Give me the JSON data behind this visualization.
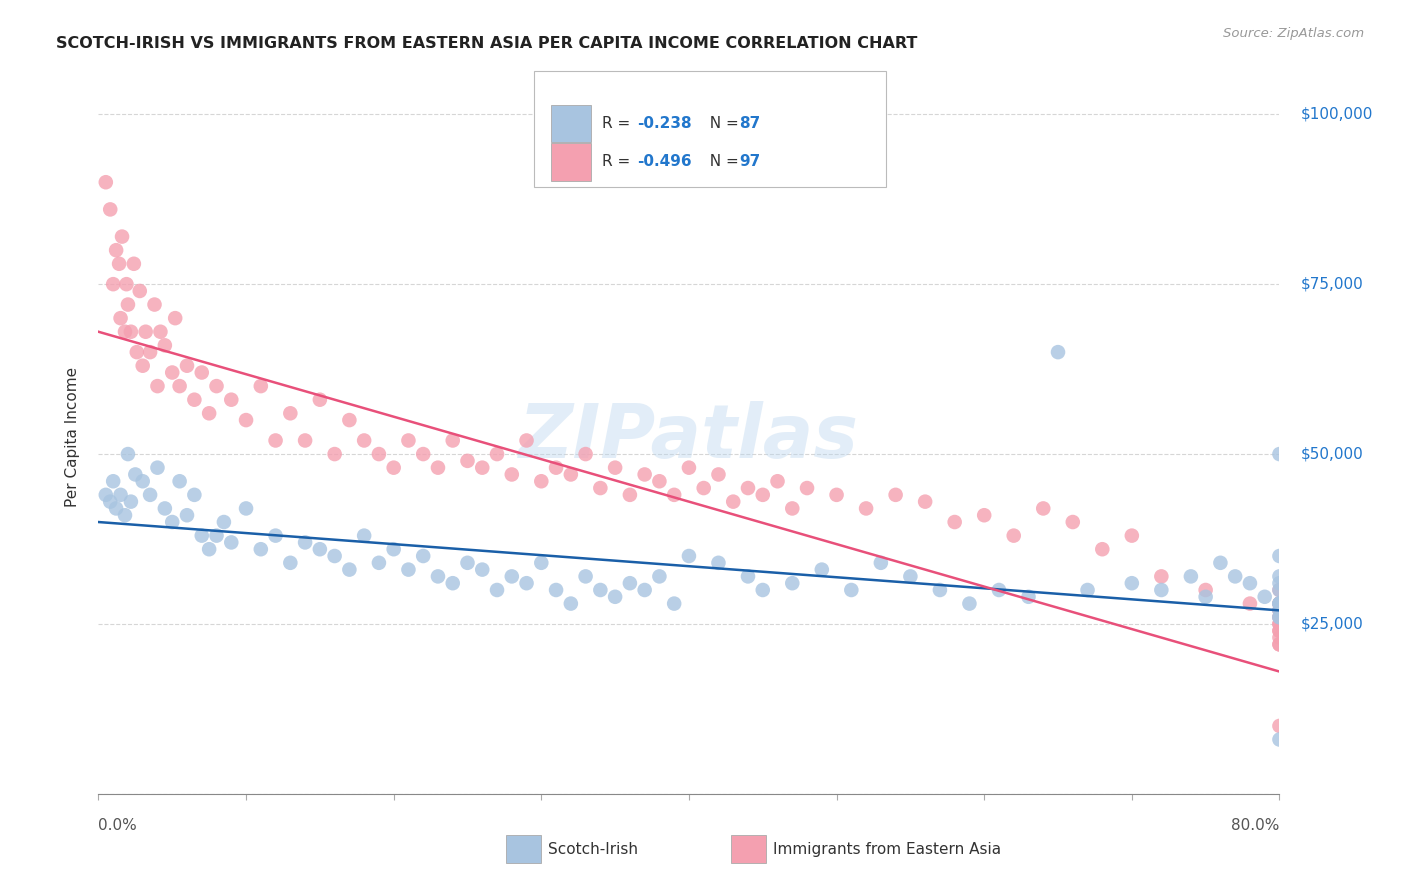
{
  "title": "SCOTCH-IRISH VS IMMIGRANTS FROM EASTERN ASIA PER CAPITA INCOME CORRELATION CHART",
  "source": "Source: ZipAtlas.com",
  "ylabel": "Per Capita Income",
  "y_ticks": [
    0,
    25000,
    50000,
    75000,
    100000
  ],
  "y_tick_labels": [
    "",
    "$25,000",
    "$50,000",
    "$75,000",
    "$100,000"
  ],
  "x_range": [
    0.0,
    80.0
  ],
  "y_range": [
    0,
    105000
  ],
  "blue_R": -0.238,
  "blue_N": 87,
  "pink_R": -0.496,
  "pink_N": 97,
  "blue_color": "#a8c4e0",
  "pink_color": "#f4a0b0",
  "blue_line_color": "#1a5fa8",
  "pink_line_color": "#e8507a",
  "right_label_color": "#2277cc",
  "watermark": "ZIPatlas",
  "blue_line_x0": 0,
  "blue_line_y0": 40000,
  "blue_line_x1": 80,
  "blue_line_y1": 27000,
  "pink_line_x0": 0,
  "pink_line_y0": 68000,
  "pink_line_x1": 80,
  "pink_line_y1": 18000,
  "blue_scatter_x": [
    0.5,
    0.8,
    1.0,
    1.2,
    1.5,
    1.8,
    2.0,
    2.2,
    2.5,
    3.0,
    3.5,
    4.0,
    4.5,
    5.0,
    5.5,
    6.0,
    6.5,
    7.0,
    7.5,
    8.0,
    8.5,
    9.0,
    10.0,
    11.0,
    12.0,
    13.0,
    14.0,
    15.0,
    16.0,
    17.0,
    18.0,
    19.0,
    20.0,
    21.0,
    22.0,
    23.0,
    24.0,
    25.0,
    26.0,
    27.0,
    28.0,
    29.0,
    30.0,
    31.0,
    32.0,
    33.0,
    34.0,
    35.0,
    36.0,
    37.0,
    38.0,
    39.0,
    40.0,
    42.0,
    44.0,
    45.0,
    47.0,
    49.0,
    51.0,
    53.0,
    55.0,
    57.0,
    59.0,
    61.0,
    63.0,
    65.0,
    67.0,
    70.0,
    72.0,
    74.0,
    75.0,
    76.0,
    77.0,
    78.0,
    79.0,
    80.0,
    80.0,
    80.0,
    80.0,
    80.0,
    80.0,
    80.0,
    80.0,
    80.0,
    80.0,
    80.0,
    80.0
  ],
  "blue_scatter_y": [
    44000,
    43000,
    46000,
    42000,
    44000,
    41000,
    50000,
    43000,
    47000,
    46000,
    44000,
    48000,
    42000,
    40000,
    46000,
    41000,
    44000,
    38000,
    36000,
    38000,
    40000,
    37000,
    42000,
    36000,
    38000,
    34000,
    37000,
    36000,
    35000,
    33000,
    38000,
    34000,
    36000,
    33000,
    35000,
    32000,
    31000,
    34000,
    33000,
    30000,
    32000,
    31000,
    34000,
    30000,
    28000,
    32000,
    30000,
    29000,
    31000,
    30000,
    32000,
    28000,
    35000,
    34000,
    32000,
    30000,
    31000,
    33000,
    30000,
    34000,
    32000,
    30000,
    28000,
    30000,
    29000,
    65000,
    30000,
    31000,
    30000,
    32000,
    29000,
    34000,
    32000,
    31000,
    29000,
    30000,
    28000,
    26000,
    28000,
    31000,
    50000,
    35000,
    32000,
    27000,
    8000,
    26000,
    28000
  ],
  "pink_scatter_x": [
    0.5,
    0.8,
    1.0,
    1.2,
    1.4,
    1.5,
    1.6,
    1.8,
    1.9,
    2.0,
    2.2,
    2.4,
    2.6,
    2.8,
    3.0,
    3.2,
    3.5,
    3.8,
    4.0,
    4.2,
    4.5,
    5.0,
    5.2,
    5.5,
    6.0,
    6.5,
    7.0,
    7.5,
    8.0,
    9.0,
    10.0,
    11.0,
    12.0,
    13.0,
    14.0,
    15.0,
    16.0,
    17.0,
    18.0,
    19.0,
    20.0,
    21.0,
    22.0,
    23.0,
    24.0,
    25.0,
    26.0,
    27.0,
    28.0,
    29.0,
    30.0,
    31.0,
    32.0,
    33.0,
    34.0,
    35.0,
    36.0,
    37.0,
    38.0,
    39.0,
    40.0,
    41.0,
    42.0,
    43.0,
    44.0,
    45.0,
    46.0,
    47.0,
    48.0,
    50.0,
    52.0,
    54.0,
    56.0,
    58.0,
    60.0,
    62.0,
    64.0,
    66.0,
    68.0,
    70.0,
    72.0,
    75.0,
    78.0,
    80.0,
    80.0,
    80.0,
    80.0,
    80.0,
    80.0,
    80.0,
    80.0,
    80.0,
    80.0,
    80.0,
    80.0,
    80.0,
    80.0
  ],
  "pink_scatter_y": [
    90000,
    86000,
    75000,
    80000,
    78000,
    70000,
    82000,
    68000,
    75000,
    72000,
    68000,
    78000,
    65000,
    74000,
    63000,
    68000,
    65000,
    72000,
    60000,
    68000,
    66000,
    62000,
    70000,
    60000,
    63000,
    58000,
    62000,
    56000,
    60000,
    58000,
    55000,
    60000,
    52000,
    56000,
    52000,
    58000,
    50000,
    55000,
    52000,
    50000,
    48000,
    52000,
    50000,
    48000,
    52000,
    49000,
    48000,
    50000,
    47000,
    52000,
    46000,
    48000,
    47000,
    50000,
    45000,
    48000,
    44000,
    47000,
    46000,
    44000,
    48000,
    45000,
    47000,
    43000,
    45000,
    44000,
    46000,
    42000,
    45000,
    44000,
    42000,
    44000,
    43000,
    40000,
    41000,
    38000,
    42000,
    40000,
    36000,
    38000,
    32000,
    30000,
    28000,
    30000,
    28000,
    25000,
    24000,
    27000,
    23000,
    26000,
    22000,
    28000,
    25000,
    22000,
    26000,
    24000,
    10000
  ]
}
